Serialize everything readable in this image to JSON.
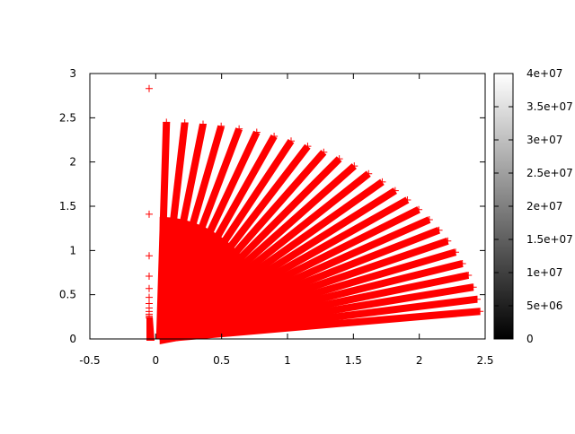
{
  "chart_data": {
    "type": "scatter",
    "title": "",
    "xlabel": "",
    "ylabel": "",
    "xlim": [
      -0.5,
      2.5
    ],
    "ylim": [
      0,
      3
    ],
    "x_ticks": [
      "-0.5",
      "0",
      "0.5",
      "1",
      "1.5",
      "2",
      "2.5"
    ],
    "y_ticks": [
      "0",
      "0.5",
      "1",
      "1.5",
      "2",
      "2.5",
      "3"
    ],
    "grid": false,
    "legend": "none",
    "marker": "+",
    "color": "#ff0000",
    "series": [
      {
        "description_kind": "radial rays from origin (dense + markers)",
        "ray_count": 26,
        "ray_radius": 2.45,
        "angle_range_deg": [
          7.3,
          88.8
        ],
        "dense_core_radius": 0.85
      },
      {
        "description_kind": "isolated points near x=-0.05",
        "x": -0.05,
        "y": [
          2.83,
          1.41,
          0.94,
          0.71,
          0.57,
          0.47,
          0.4,
          0.35,
          0.31,
          0.28,
          0.26,
          0.24
        ]
      }
    ],
    "colorbar": {
      "range": [
        0,
        40000000
      ],
      "ticks": [
        "0",
        "5e+06",
        "1e+07",
        "1.5e+07",
        "2e+07",
        "2.5e+07",
        "3e+07",
        "3.5e+07",
        "4e+07"
      ],
      "colormap": "gray",
      "low_color": "#000000",
      "high_color": "#ffffff"
    }
  }
}
